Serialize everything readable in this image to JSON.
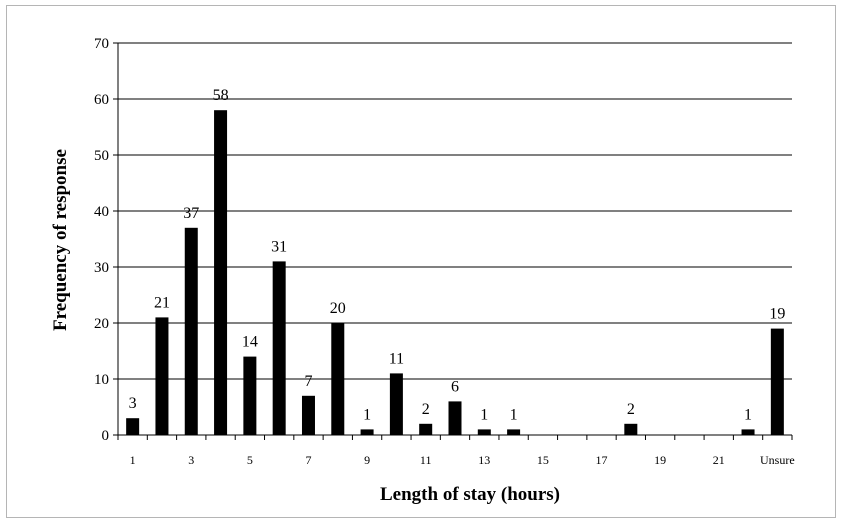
{
  "chart_data": {
    "type": "bar",
    "title": "",
    "xlabel": "Length of stay (hours)",
    "ylabel": "Frequency of response",
    "ylim": [
      0,
      70
    ],
    "yticks": [
      0,
      10,
      20,
      30,
      40,
      50,
      60,
      70
    ],
    "grid": true,
    "legend": "none",
    "bar_color": "#000000",
    "categories": [
      "1",
      "2",
      "3",
      "4",
      "5",
      "6",
      "7",
      "8",
      "9",
      "10",
      "11",
      "12",
      "13",
      "14",
      "15",
      "16",
      "17",
      "18",
      "19",
      "20",
      "21",
      "22",
      "Unsure"
    ],
    "category_tick_labels": [
      "1",
      "",
      "3",
      "",
      "5",
      "",
      "7",
      "",
      "9",
      "",
      "11",
      "",
      "13",
      "",
      "15",
      "",
      "17",
      "",
      "19",
      "",
      "21",
      "",
      "Unsure"
    ],
    "values": [
      3,
      21,
      37,
      58,
      14,
      31,
      7,
      20,
      1,
      11,
      2,
      6,
      1,
      1,
      0,
      0,
      0,
      2,
      0,
      0,
      0,
      1,
      19
    ],
    "data_labels": [
      "3",
      "21",
      "37",
      "58",
      "14",
      "31",
      "7",
      "20",
      "1",
      "11",
      "2",
      "6",
      "1",
      "1",
      "",
      "",
      "",
      "2",
      "",
      "",
      "",
      "1",
      "19"
    ]
  }
}
